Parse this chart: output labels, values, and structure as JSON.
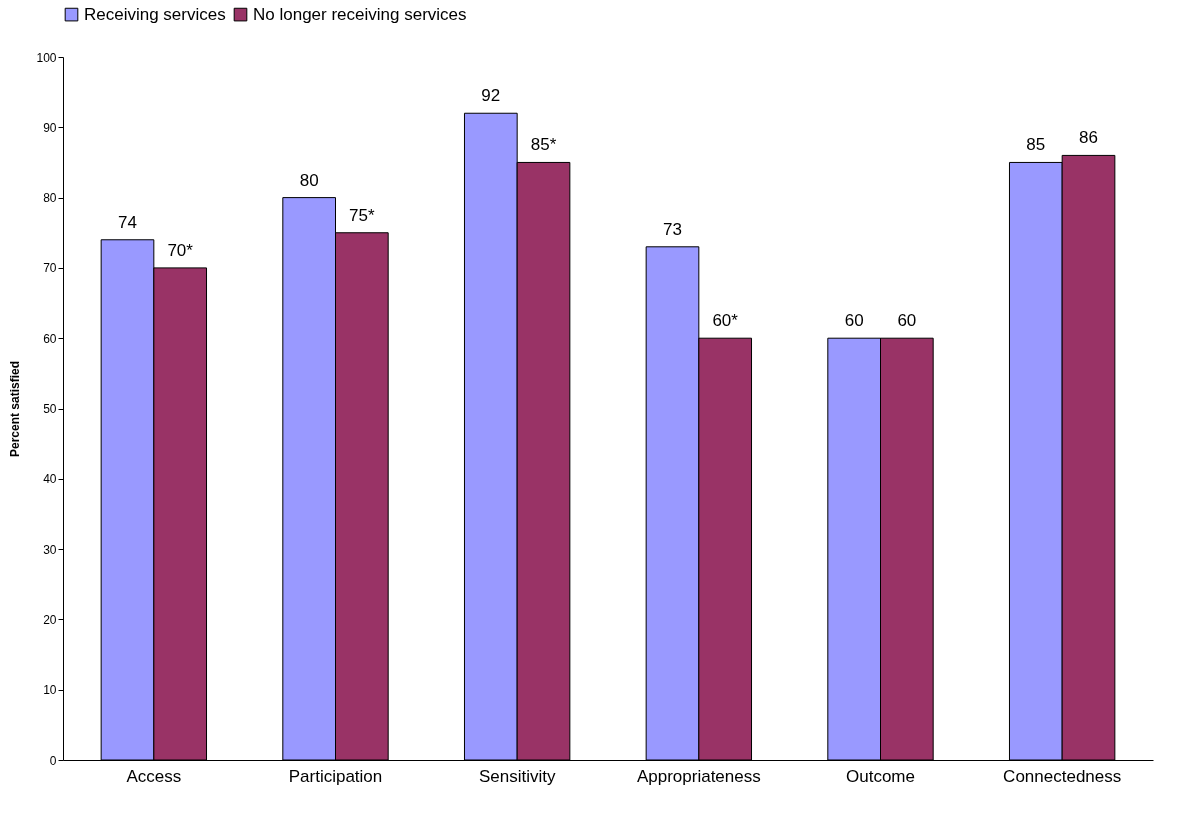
{
  "chart_data": {
    "type": "bar",
    "ylabel": "Percent satisfied",
    "categories": [
      "Access",
      "Participation",
      "Sensitivity",
      "Appropriateness",
      "Outcome",
      "Connectedness"
    ],
    "series": [
      {
        "name": "Receiving services",
        "color": "#9999ff",
        "values": [
          74,
          80,
          92,
          73,
          60,
          85
        ],
        "value_labels": [
          "74",
          "80",
          "92",
          "73",
          "60",
          "85"
        ]
      },
      {
        "name": "No longer receiving services",
        "color": "#993366",
        "values": [
          70,
          75,
          85,
          60,
          60,
          86
        ],
        "value_labels": [
          "70*",
          "75*",
          "85*",
          "60*",
          "60",
          "86"
        ]
      }
    ],
    "ylim": [
      0,
      100
    ],
    "yticks": [
      0,
      10,
      20,
      30,
      40,
      50,
      60,
      70,
      80,
      90,
      100
    ],
    "grid": false,
    "legend": "top"
  }
}
